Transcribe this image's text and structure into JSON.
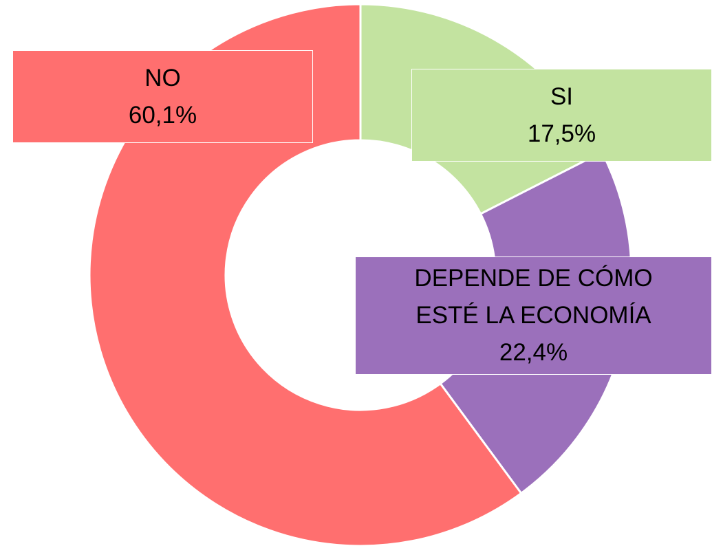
{
  "chart_data": {
    "type": "donut",
    "categories": [
      "SI",
      "DEPENDE DE CÓMO ESTÉ LA ECONOMÍA",
      "NO"
    ],
    "values": [
      17.5,
      22.4,
      60.1
    ],
    "value_labels": [
      "17,5%",
      "22,4%",
      "60,1%"
    ],
    "colors": [
      "#c3e3a0",
      "#9b70bb",
      "#ff6f6f"
    ]
  }
}
